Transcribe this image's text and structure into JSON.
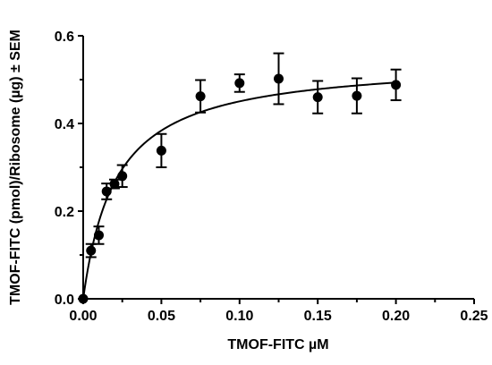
{
  "chart_data": {
    "type": "scatter",
    "title": "",
    "xlabel": "TMOF-FITC µM",
    "ylabel": "TMOF-FITC (pmol)/Ribosome (µg) ± SEM",
    "xlim": [
      0,
      0.25
    ],
    "ylim": [
      0,
      0.6
    ],
    "x_ticks": [
      "0.00",
      "0.05",
      "0.10",
      "0.15",
      "0.20",
      "0.25"
    ],
    "y_ticks": [
      "0.0",
      "0.2",
      "0.4",
      "0.6"
    ],
    "grid": false,
    "legend": "none",
    "fit_curve": {
      "type": "hyperbola",
      "Bmax": 0.545,
      "Kd": 0.021
    },
    "series": [
      {
        "x": [
          0.0,
          0.005,
          0.01,
          0.015,
          0.02,
          0.025,
          0.05,
          0.075,
          0.1,
          0.125,
          0.15,
          0.175,
          0.2
        ],
        "y": [
          0.0,
          0.11,
          0.145,
          0.245,
          0.262,
          0.28,
          0.338,
          0.462,
          0.492,
          0.502,
          0.46,
          0.463,
          0.488
        ],
        "sem": [
          0.0,
          0.015,
          0.02,
          0.018,
          0.01,
          0.025,
          0.038,
          0.037,
          0.02,
          0.058,
          0.037,
          0.04,
          0.035
        ]
      }
    ]
  }
}
